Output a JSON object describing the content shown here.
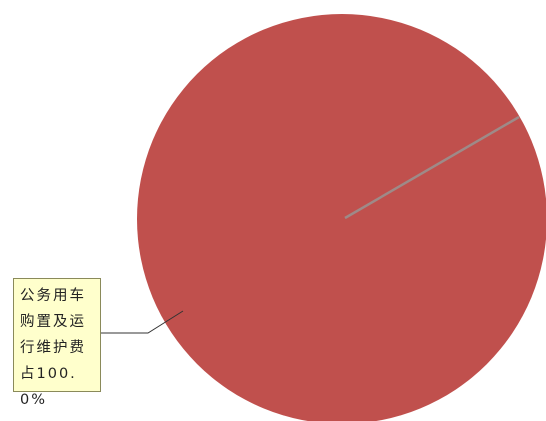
{
  "chart_data": {
    "type": "pie",
    "title": "",
    "slices": [
      {
        "label": "公务用车购置及运行维护费",
        "value": 100.0,
        "percent_text": "公务用车购置及运行维护费占100.0%",
        "color": "#c0504d"
      }
    ],
    "legend": "none",
    "data_label_placement": "left callout"
  }
}
